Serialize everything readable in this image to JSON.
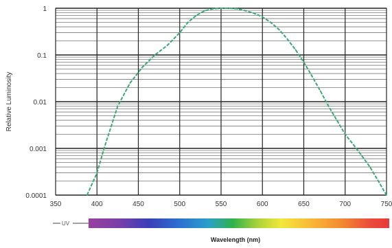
{
  "chart_data": {
    "type": "line",
    "title": "",
    "xlabel": "Wavelength (nm)",
    "ylabel": "Relative Luminosity",
    "xlim": [
      350,
      750
    ],
    "ylim": [
      0.0001,
      1
    ],
    "yscale": "log",
    "grid": true,
    "x_ticks": [
      "350",
      "400",
      "450",
      "500",
      "550",
      "600",
      "650",
      "700",
      "750"
    ],
    "y_ticks": [
      "1",
      "0.1",
      "0.01",
      "0.001",
      "0.0001"
    ],
    "spectrum_bar_label": "UV",
    "line_color": "#3aa876",
    "series": [
      {
        "x": [
          388,
          400,
          410,
          425,
          440,
          455,
          470,
          485,
          500,
          510,
          520,
          530,
          540,
          550,
          560,
          570,
          580,
          590,
          600,
          610,
          620,
          630,
          640,
          650,
          660,
          670,
          680,
          690,
          700,
          710,
          720,
          730,
          740,
          750
        ],
        "y": [
          0.0001,
          0.0003,
          0.0012,
          0.008,
          0.025,
          0.055,
          0.1,
          0.16,
          0.3,
          0.5,
          0.7,
          0.88,
          0.97,
          1.0,
          1.0,
          0.97,
          0.88,
          0.78,
          0.65,
          0.5,
          0.35,
          0.22,
          0.13,
          0.07,
          0.035,
          0.017,
          0.008,
          0.004,
          0.002,
          0.0012,
          0.0007,
          0.0004,
          0.0002,
          0.0001
        ]
      }
    ]
  }
}
